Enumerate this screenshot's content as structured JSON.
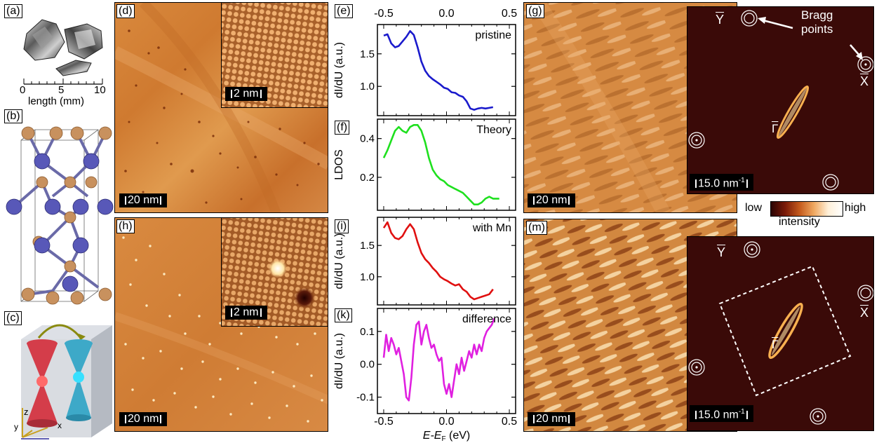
{
  "panels": {
    "a": {
      "label": "(a)",
      "axis_title": "length (mm)",
      "ticks": [
        "0",
        "5",
        "10"
      ]
    },
    "b": {
      "label": "(b)"
    },
    "c": {
      "label": "(c)",
      "axes": [
        "z",
        "y",
        "x"
      ]
    },
    "d": {
      "label": "(d)",
      "scalebar": "20 nm",
      "inset_scalebar": "2 nm"
    },
    "h": {
      "label": "(h)",
      "scalebar": "20 nm",
      "inset_scalebar": "2 nm"
    },
    "g": {
      "label": "(g)",
      "scalebar": "20 nm",
      "fft_scalebar": "15.0 nm",
      "fft_scalebar_sup": "-1",
      "bragg_text_line1": "Bragg",
      "bragg_text_line2": "points",
      "sym_Y": "Y",
      "sym_X": "X",
      "sym_G": "Γ"
    },
    "m": {
      "label": "(m)",
      "scalebar": "20 nm",
      "fft_scalebar": "15.0 nm",
      "fft_scalebar_sup": "-1",
      "sym_Y": "Y",
      "sym_X": "X",
      "sym_G": "Γ"
    },
    "colorbar": {
      "low": "low",
      "high": "high",
      "title": "intensity"
    }
  },
  "chart_data": [
    {
      "type": "line",
      "panel_label": "(e)",
      "annotation": "pristine",
      "ylabel": "dI/dU (a.u.)",
      "ylim": [
        0.55,
        1.95
      ],
      "yticks": [
        "1.5",
        "1.0"
      ],
      "color": "#1a1acc",
      "x": [
        -0.5,
        -0.47,
        -0.44,
        -0.41,
        -0.38,
        -0.35,
        -0.32,
        -0.29,
        -0.26,
        -0.23,
        -0.2,
        -0.17,
        -0.14,
        -0.11,
        -0.08,
        -0.05,
        -0.02,
        0.01,
        0.04,
        0.07,
        0.1,
        0.13,
        0.16,
        0.19,
        0.22,
        0.25,
        0.28,
        0.31,
        0.34,
        0.37
      ],
      "y": [
        1.78,
        1.8,
        1.66,
        1.6,
        1.62,
        1.69,
        1.76,
        1.85,
        1.79,
        1.6,
        1.38,
        1.24,
        1.16,
        1.11,
        1.07,
        1.03,
        0.98,
        0.96,
        0.91,
        0.9,
        0.86,
        0.84,
        0.77,
        0.66,
        0.64,
        0.66,
        0.67,
        0.66,
        0.67,
        0.68
      ]
    },
    {
      "type": "line",
      "panel_label": "(f)",
      "annotation": "Theory",
      "ylabel": "LDOS",
      "ylim": [
        0.03,
        0.5
      ],
      "yticks": [
        "0.4",
        "0.2"
      ],
      "color": "#1ee01e",
      "x": [
        -0.5,
        -0.47,
        -0.44,
        -0.41,
        -0.38,
        -0.35,
        -0.32,
        -0.29,
        -0.26,
        -0.23,
        -0.2,
        -0.17,
        -0.14,
        -0.11,
        -0.08,
        -0.05,
        -0.02,
        0.01,
        0.04,
        0.07,
        0.1,
        0.13,
        0.16,
        0.19,
        0.22,
        0.25,
        0.28,
        0.31,
        0.34,
        0.37,
        0.4,
        0.42
      ],
      "y": [
        0.3,
        0.34,
        0.39,
        0.44,
        0.46,
        0.44,
        0.43,
        0.46,
        0.47,
        0.47,
        0.44,
        0.38,
        0.3,
        0.24,
        0.21,
        0.19,
        0.18,
        0.16,
        0.15,
        0.14,
        0.13,
        0.12,
        0.1,
        0.08,
        0.06,
        0.06,
        0.07,
        0.09,
        0.1,
        0.09,
        0.09,
        0.09
      ]
    },
    {
      "type": "line",
      "panel_label": "(i)",
      "annotation": "with Mn",
      "ylabel": "dI/dU (a.u.)",
      "ylim": [
        0.55,
        1.95
      ],
      "yticks": [
        "1.5",
        "1.0"
      ],
      "color": "#e01010",
      "x": [
        -0.5,
        -0.47,
        -0.44,
        -0.41,
        -0.38,
        -0.35,
        -0.32,
        -0.29,
        -0.26,
        -0.23,
        -0.2,
        -0.17,
        -0.14,
        -0.11,
        -0.08,
        -0.05,
        -0.02,
        0.01,
        0.04,
        0.07,
        0.1,
        0.13,
        0.16,
        0.19,
        0.22,
        0.25,
        0.28,
        0.31,
        0.34,
        0.37
      ],
      "y": [
        1.78,
        1.87,
        1.7,
        1.62,
        1.6,
        1.65,
        1.76,
        1.84,
        1.76,
        1.55,
        1.38,
        1.28,
        1.22,
        1.14,
        1.08,
        1.0,
        0.96,
        0.93,
        0.89,
        0.86,
        0.88,
        0.8,
        0.76,
        0.68,
        0.64,
        0.66,
        0.68,
        0.7,
        0.72,
        0.8
      ]
    },
    {
      "type": "line",
      "panel_label": "(k)",
      "annotation": "difference",
      "ylabel": "dI/dU (a.u.)",
      "ylim": [
        -0.15,
        0.17
      ],
      "yticks": [
        "0.1",
        "0.0",
        "-0.1"
      ],
      "color": "#e020e0",
      "x": [
        -0.5,
        -0.48,
        -0.46,
        -0.44,
        -0.42,
        -0.4,
        -0.38,
        -0.36,
        -0.34,
        -0.32,
        -0.3,
        -0.28,
        -0.26,
        -0.24,
        -0.22,
        -0.2,
        -0.18,
        -0.16,
        -0.14,
        -0.12,
        -0.1,
        -0.08,
        -0.06,
        -0.04,
        -0.02,
        0.0,
        0.02,
        0.04,
        0.06,
        0.08,
        0.1,
        0.12,
        0.14,
        0.16,
        0.18,
        0.2,
        0.22,
        0.24,
        0.26,
        0.28,
        0.3,
        0.32,
        0.34,
        0.36,
        0.38
      ],
      "y": [
        0.02,
        0.09,
        0.04,
        0.08,
        0.06,
        0.03,
        0.05,
        0.01,
        -0.03,
        -0.1,
        -0.11,
        -0.04,
        0.06,
        0.12,
        0.13,
        0.06,
        0.1,
        0.12,
        0.08,
        0.05,
        0.06,
        0.03,
        0.01,
        0.02,
        -0.06,
        -0.09,
        -0.06,
        -0.1,
        -0.05,
        0.0,
        -0.03,
        0.02,
        -0.02,
        0.01,
        0.04,
        0.02,
        0.06,
        0.03,
        0.06,
        0.04,
        0.08,
        0.1,
        0.11,
        0.12,
        0.14
      ]
    }
  ],
  "x_axis": {
    "top_ticks": [
      "-0.5",
      "0.0",
      "0.5"
    ],
    "bottom_ticks": [
      "-0.5",
      "0.0",
      "0.5"
    ],
    "xlabel_main": "E-E",
    "xlabel_sub": "F",
    "xlabel_unit": " (eV)"
  }
}
